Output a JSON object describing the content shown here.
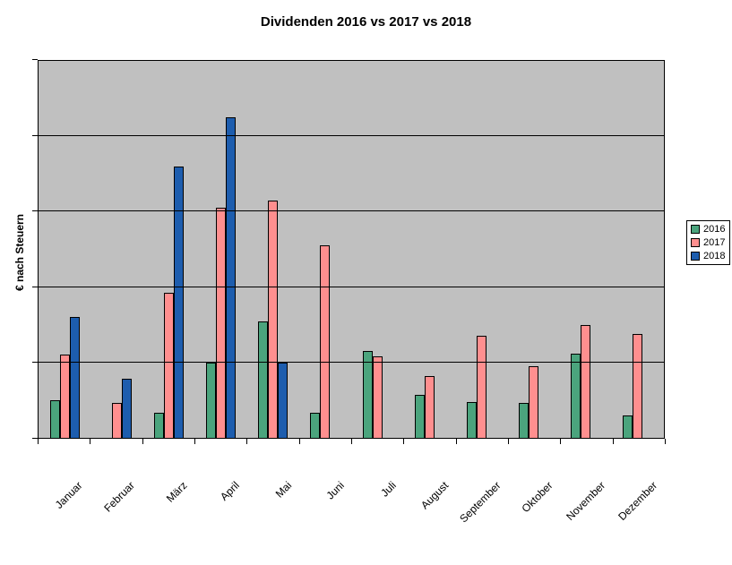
{
  "chart_data": {
    "type": "bar",
    "title": "Dividenden 2016 vs 2017 vs 2018",
    "xlabel": "",
    "ylabel": "€ nach Steuern",
    "categories": [
      "Januar",
      "Februar",
      "März",
      "April",
      "Mai",
      "Juni",
      "Juli",
      "August",
      "September",
      "Oktober",
      "November",
      "Dezember"
    ],
    "series": [
      {
        "name": "2016",
        "color": "#4BA47D",
        "values": [
          0.5,
          0,
          0.33,
          1.0,
          1.55,
          0.33,
          1.15,
          0.57,
          0.48,
          0.46,
          1.12,
          0.3
        ]
      },
      {
        "name": "2017",
        "color": "#FF8F8F",
        "values": [
          1.1,
          0.46,
          1.92,
          3.05,
          3.15,
          2.55,
          1.08,
          0.82,
          1.35,
          0.95,
          1.5,
          1.38
        ]
      },
      {
        "name": "2018",
        "color": "#1D5DAE",
        "values": [
          1.6,
          0.78,
          3.6,
          4.25,
          1.0,
          0,
          0,
          0,
          0,
          0,
          0,
          0
        ]
      }
    ],
    "ylim": [
      0,
      5
    ],
    "gridline_divisions": 5,
    "y_tick_labels": [],
    "grid": true,
    "legend_position": "right",
    "plot_background": "#c0c0c0",
    "note": "y-axis shows no numeric labels; values estimated in gridline units from the baseline"
  }
}
